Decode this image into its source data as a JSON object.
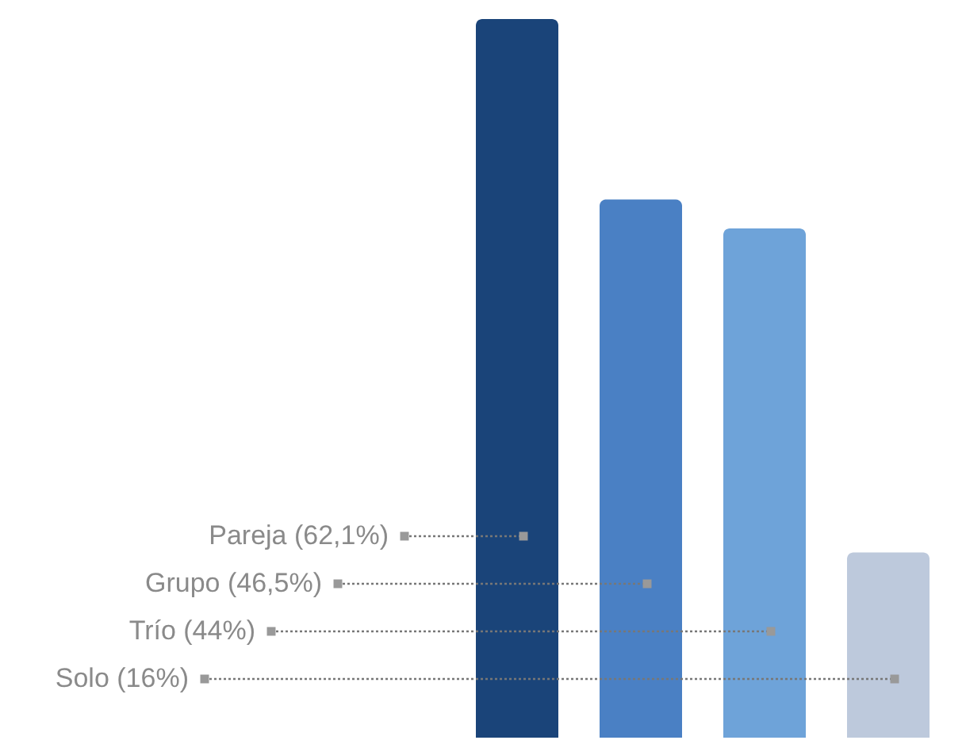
{
  "chart_data": {
    "type": "bar",
    "categories": [
      null,
      null,
      null,
      null
    ],
    "values": [
      62.1,
      46.5,
      44,
      16
    ],
    "value_labels": [
      "Pareja (62,1%)",
      "Grupo (46,5%)",
      "Trío (44%)",
      "Solo (16%)"
    ],
    "colors": [
      "#1a4479",
      "#4a80c4",
      "#6ea3d9",
      "#bdc9dc"
    ]
  }
}
